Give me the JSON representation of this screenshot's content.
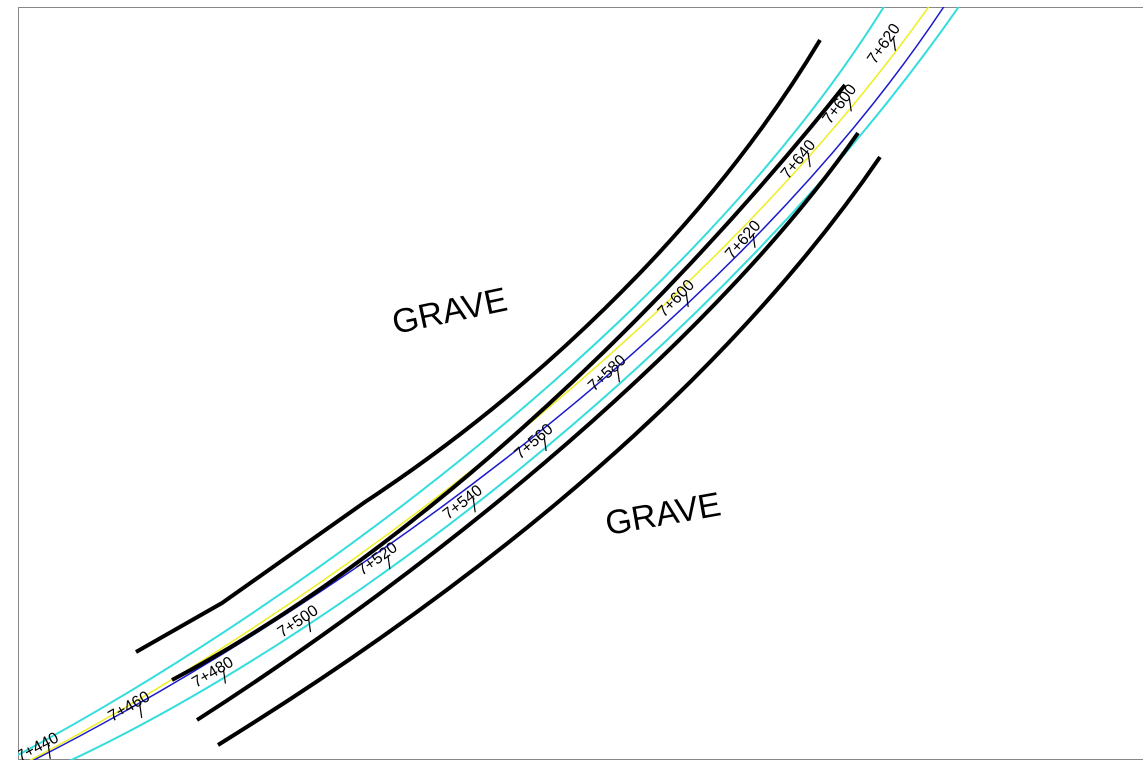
{
  "labels": [
    "GRAVE",
    "GRAVE"
  ],
  "stations": [
    "7+440",
    "7+460",
    "7+480",
    "7+500",
    "7+520",
    "7+540",
    "7+560",
    "7+580",
    "7+600",
    "7+620",
    "7+640",
    "7+600",
    "7+620"
  ]
}
